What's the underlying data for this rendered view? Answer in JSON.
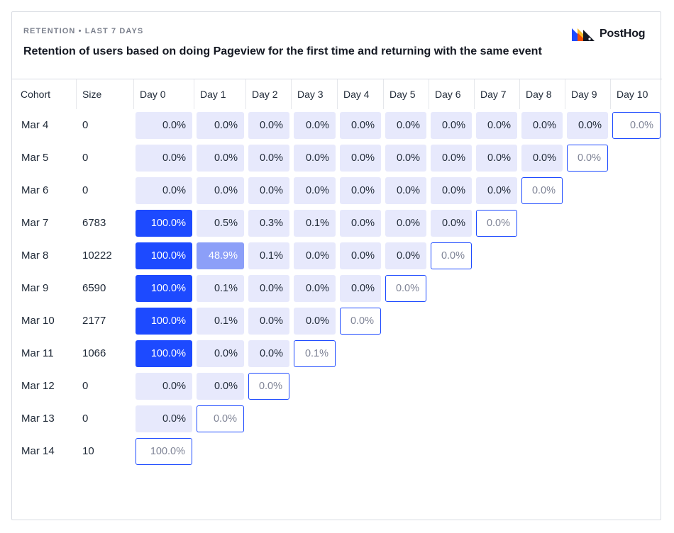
{
  "header": {
    "kicker": "RETENTION • LAST 7 DAYS",
    "title": "Retention of users based on doing Pageview for the first time and returning with the same event",
    "logo_text": "PostHog"
  },
  "columns": [
    "Cohort",
    "Size",
    "Day 0",
    "Day 1",
    "Day 2",
    "Day 3",
    "Day 4",
    "Day 5",
    "Day 6",
    "Day 7",
    "Day 8",
    "Day 9",
    "Day 10"
  ],
  "rows": [
    {
      "cohort": "Mar 4",
      "size": "0",
      "values": [
        "0.0%",
        "0.0%",
        "0.0%",
        "0.0%",
        "0.0%",
        "0.0%",
        "0.0%",
        "0.0%",
        "0.0%",
        "0.0%",
        "0.0%"
      ]
    },
    {
      "cohort": "Mar 5",
      "size": "0",
      "values": [
        "0.0%",
        "0.0%",
        "0.0%",
        "0.0%",
        "0.0%",
        "0.0%",
        "0.0%",
        "0.0%",
        "0.0%",
        "0.0%"
      ]
    },
    {
      "cohort": "Mar 6",
      "size": "0",
      "values": [
        "0.0%",
        "0.0%",
        "0.0%",
        "0.0%",
        "0.0%",
        "0.0%",
        "0.0%",
        "0.0%",
        "0.0%"
      ]
    },
    {
      "cohort": "Mar 7",
      "size": "6783",
      "values": [
        "100.0%",
        "0.5%",
        "0.3%",
        "0.1%",
        "0.0%",
        "0.0%",
        "0.0%",
        "0.0%"
      ]
    },
    {
      "cohort": "Mar 8",
      "size": "10222",
      "values": [
        "100.0%",
        "48.9%",
        "0.1%",
        "0.0%",
        "0.0%",
        "0.0%",
        "0.0%"
      ]
    },
    {
      "cohort": "Mar 9",
      "size": "6590",
      "values": [
        "100.0%",
        "0.1%",
        "0.0%",
        "0.0%",
        "0.0%",
        "0.0%"
      ]
    },
    {
      "cohort": "Mar 10",
      "size": "2177",
      "values": [
        "100.0%",
        "0.1%",
        "0.0%",
        "0.0%",
        "0.0%"
      ]
    },
    {
      "cohort": "Mar 11",
      "size": "1066",
      "values": [
        "100.0%",
        "0.0%",
        "0.0%",
        "0.1%"
      ]
    },
    {
      "cohort": "Mar 12",
      "size": "0",
      "values": [
        "0.0%",
        "0.0%",
        "0.0%"
      ]
    },
    {
      "cohort": "Mar 13",
      "size": "0",
      "values": [
        "0.0%",
        "0.0%"
      ]
    },
    {
      "cohort": "Mar 14",
      "size": "10",
      "values": [
        "100.0%"
      ]
    }
  ],
  "colors": {
    "accent": "#1d4aff",
    "low_bg": "#e7e9fc",
    "mid_bg": "#8c9ff8"
  }
}
